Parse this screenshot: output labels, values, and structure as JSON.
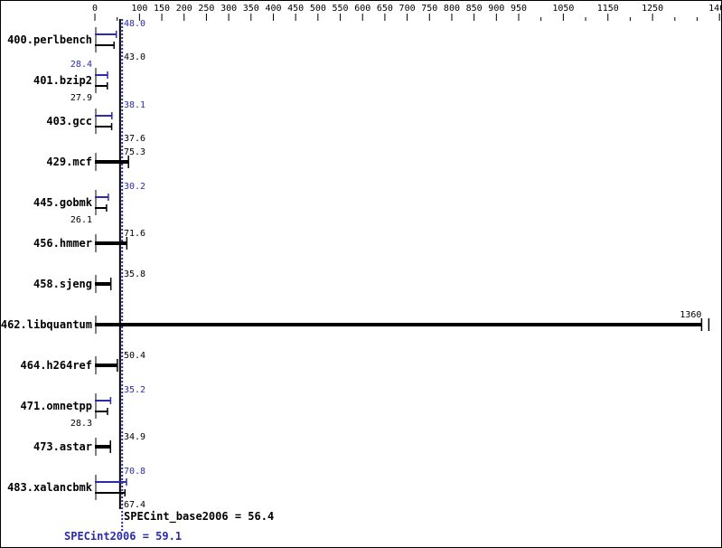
{
  "chart_data": {
    "type": "bar",
    "orientation": "horizontal",
    "categories": [
      "400.perlbench",
      "401.bzip2",
      "403.gcc",
      "429.mcf",
      "445.gobmk",
      "456.hmmer",
      "458.sjeng",
      "462.libquantum",
      "464.h264ref",
      "471.omnetpp",
      "473.astar",
      "483.xalancbmk"
    ],
    "series": [
      {
        "name": "SPECint2006",
        "color": "#2b2bb0",
        "values": [
          48.0,
          28.4,
          38.1,
          null,
          30.2,
          null,
          null,
          null,
          null,
          35.2,
          null,
          70.8
        ]
      },
      {
        "name": "SPECint_base2006",
        "color": "#000000",
        "values": [
          43.0,
          27.9,
          37.6,
          75.3,
          26.1,
          71.6,
          35.8,
          1360,
          50.4,
          28.3,
          34.9,
          67.4
        ]
      }
    ],
    "xlim": [
      0,
      1400
    ],
    "x_tick_labels": [
      "0",
      "100",
      "150",
      "200",
      "250",
      "300",
      "350",
      "400",
      "450",
      "500",
      "550",
      "600",
      "650",
      "700",
      "750",
      "800",
      "850",
      "900",
      "950",
      "1050",
      "1150",
      "1250",
      "1400"
    ],
    "x_minor_ticks": [
      50,
      1000,
      1100,
      1200,
      1300,
      1350
    ],
    "axis_position": "top",
    "grid": false,
    "reference_lines": [
      {
        "label": "SPECint_base2006 = 56.4",
        "value": 56.4,
        "color": "#000000",
        "style": "solid"
      },
      {
        "label": "SPECint2006 = 59.1",
        "value": 59.1,
        "color": "#2b2bb0",
        "style": "dotted"
      }
    ]
  }
}
